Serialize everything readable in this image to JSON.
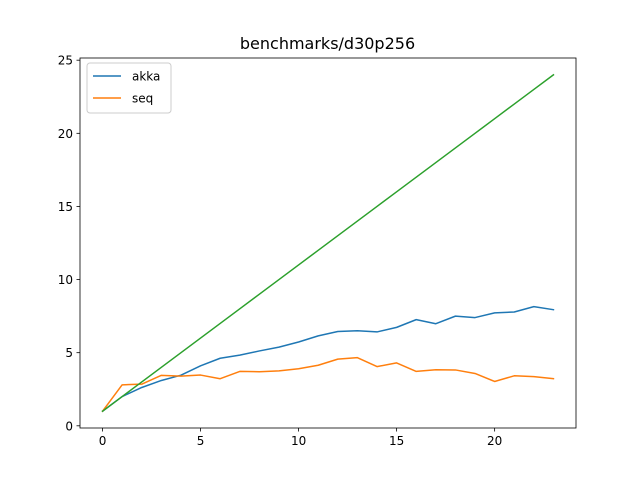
{
  "chart_data": {
    "type": "line",
    "title": "benchmarks/d30p256",
    "xlabel": "",
    "ylabel": "",
    "xlim": [
      -1.15,
      24.15
    ],
    "ylim": [
      -0.15,
      25.15
    ],
    "xticks": [
      0,
      5,
      10,
      15,
      20
    ],
    "yticks": [
      0,
      5,
      10,
      15,
      20,
      25
    ],
    "xtick_labels": [
      "0",
      "5",
      "10",
      "15",
      "20"
    ],
    "ytick_labels": [
      "0",
      "5",
      "10",
      "15",
      "20",
      "25"
    ],
    "grid": false,
    "legend_position": "top-left",
    "x": [
      0,
      1,
      2,
      3,
      4,
      5,
      6,
      7,
      8,
      9,
      10,
      11,
      12,
      13,
      14,
      15,
      16,
      17,
      18,
      19,
      20,
      21,
      22,
      23
    ],
    "series": [
      {
        "name": "akka",
        "color": "#1f77b4",
        "values": [
          1.0,
          2.0,
          2.62,
          3.1,
          3.46,
          4.1,
          4.62,
          4.83,
          5.12,
          5.38,
          5.73,
          6.15,
          6.45,
          6.5,
          6.42,
          6.73,
          7.26,
          6.98,
          7.5,
          7.4,
          7.72,
          7.78,
          8.15,
          7.94
        ]
      },
      {
        "name": "seq",
        "color": "#ff7f0e",
        "values": [
          1.0,
          2.8,
          2.85,
          3.45,
          3.4,
          3.47,
          3.22,
          3.72,
          3.7,
          3.76,
          3.9,
          4.14,
          4.56,
          4.66,
          4.05,
          4.3,
          3.72,
          3.83,
          3.82,
          3.58,
          3.03,
          3.42,
          3.36,
          3.22
        ]
      },
      {
        "color": "#2ca02c",
        "values": [
          1,
          2,
          3,
          4,
          5,
          6,
          7,
          8,
          9,
          10,
          11,
          12,
          13,
          14,
          15,
          16,
          17,
          18,
          19,
          20,
          21,
          22,
          23,
          24
        ]
      }
    ]
  }
}
